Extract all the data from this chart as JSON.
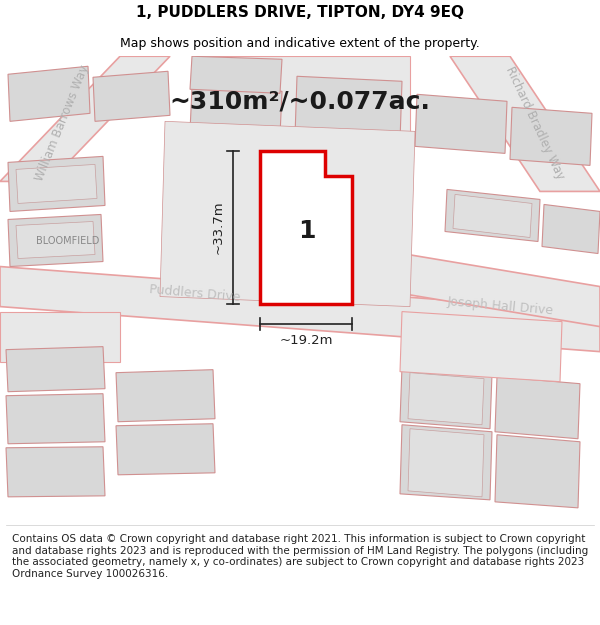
{
  "title": "1, PUDDLERS DRIVE, TIPTON, DY4 9EQ",
  "subtitle": "Map shows position and indicative extent of the property.",
  "area_text": "~310m²/~0.077ac.",
  "width_label": "~19.2m",
  "height_label": "~33.7m",
  "number_label": "1",
  "footer": "Contains OS data © Crown copyright and database right 2021. This information is subject to Crown copyright and database rights 2023 and is reproduced with the permission of HM Land Registry. The polygons (including the associated geometry, namely x, y co-ordinates) are subject to Crown copyright and database rights 2023 Ordnance Survey 100026316.",
  "map_bg": "#f0f0f0",
  "road_line_color": "#e8a0a0",
  "road_fill_color": "#e8e8e8",
  "building_fill": "#d8d8d8",
  "building_edge": "#d09090",
  "plot_fill": "#ffffff",
  "plot_edge": "#dd0000",
  "label_gray": "#aaaaaa",
  "label_dark": "#444444",
  "bloomfield_color": "#888888",
  "dim_color": "#222222",
  "title_fontsize": 11,
  "subtitle_fontsize": 9,
  "footer_fontsize": 7.5,
  "area_fontsize": 18,
  "number_fontsize": 18,
  "street_fontsize": 8.5,
  "dim_fontsize": 9.5
}
